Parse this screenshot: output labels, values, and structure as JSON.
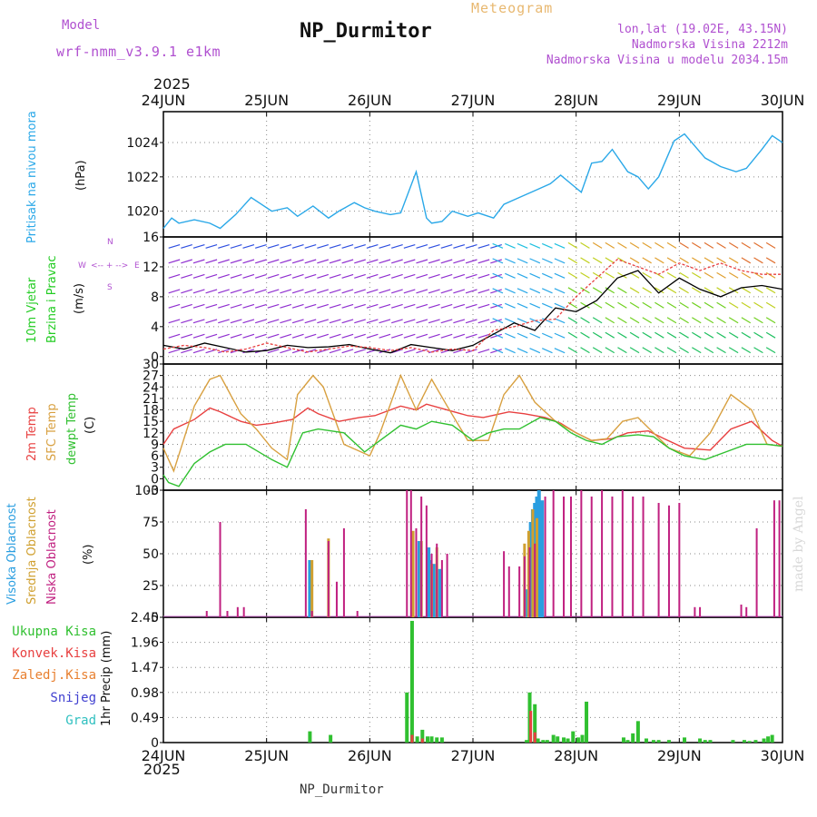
{
  "header": {
    "model_label": "Model",
    "model_value": "wrf-nmm_v3.9.1  e1km",
    "meteogram_label": "Meteogram",
    "station_title": "NP_Durmitor",
    "lonlat": "lon,lat (19.02E, 43.15N)",
    "elevation": "Nadmorska Visina 2212m",
    "model_elevation": "Nadmorska Visina u modelu 2034.15m",
    "year": "2025"
  },
  "x_axis": {
    "ticks": [
      "24JUN",
      "25JUN",
      "26JUN",
      "27JUN",
      "28JUN",
      "29JUN",
      "30JUN"
    ]
  },
  "footer": {
    "station": "NP_Durmitor",
    "watermark": "made by Angel"
  },
  "colors": {
    "pressure": "#2aa8e8",
    "t2m": "#e84040",
    "sfc": "#d8a040",
    "dew": "#30c030",
    "high_cloud": "#2a9ee0",
    "mid_cloud": "#d0a030",
    "low_cloud": "#c02080",
    "total_precip": "#30c030",
    "conv_precip": "#e84040",
    "freezing": "#e88030",
    "snow": "#4040d0",
    "hail": "#30c0c0",
    "wind_speed": "#000000",
    "gust": "#e84040"
  },
  "chart_data": [
    {
      "type": "line",
      "panel": "pressure",
      "ylabel_lines": [
        "Pritisak na nivou mora",
        "(hPa)"
      ],
      "ylabel": "(hPa)",
      "y_ticks": [
        1020,
        1022,
        1024
      ],
      "ylim": [
        1018.5,
        1025.8
      ],
      "xlim": [
        0,
        6
      ],
      "grid": true,
      "series": [
        {
          "name": "Pritisak na nivou mora",
          "x": [
            0,
            0.08,
            0.15,
            0.3,
            0.45,
            0.55,
            0.7,
            0.85,
            0.95,
            1.05,
            1.2,
            1.3,
            1.45,
            1.6,
            1.7,
            1.85,
            1.95,
            2.05,
            2.2,
            2.3,
            2.45,
            2.55,
            2.6,
            2.7,
            2.8,
            2.95,
            3.05,
            3.2,
            3.3,
            3.45,
            3.6,
            3.75,
            3.85,
            3.95,
            4.05,
            4.15,
            4.25,
            4.35,
            4.5,
            4.6,
            4.7,
            4.8,
            4.95,
            5.05,
            5.15,
            5.25,
            5.4,
            5.55,
            5.65,
            5.8,
            5.9,
            6.0
          ],
          "values": [
            1019.0,
            1019.6,
            1019.3,
            1019.5,
            1019.3,
            1019.0,
            1019.8,
            1020.8,
            1020.4,
            1020.0,
            1020.2,
            1019.7,
            1020.3,
            1019.6,
            1020.0,
            1020.5,
            1020.2,
            1020.0,
            1019.8,
            1019.9,
            1022.3,
            1019.6,
            1019.3,
            1019.4,
            1020.0,
            1019.7,
            1019.9,
            1019.6,
            1020.4,
            1020.8,
            1021.2,
            1021.6,
            1022.1,
            1021.6,
            1021.1,
            1022.8,
            1022.9,
            1023.6,
            1022.3,
            1022.0,
            1021.3,
            1022.0,
            1024.1,
            1024.5,
            1023.8,
            1023.1,
            1022.6,
            1022.3,
            1022.5,
            1023.6,
            1024.4,
            1024.0
          ]
        }
      ]
    },
    {
      "type": "line",
      "panel": "wind",
      "ylabel_lines": [
        "10m Vjetar",
        "Brzina i Pravac",
        "(m/s)"
      ],
      "ylabel": "(m/s)",
      "compass": {
        "n": "N",
        "s": "S",
        "w": "W",
        "e": "E"
      },
      "y_ticks": [
        0,
        4,
        8,
        12,
        16
      ],
      "y_tick_labels": [
        "0",
        "4",
        "8",
        "12",
        "16"
      ],
      "ylim": [
        -1,
        16
      ],
      "xlim": [
        0,
        6
      ],
      "grid": true,
      "series": [
        {
          "name": "wind speed",
          "x": [
            0,
            0.2,
            0.4,
            0.6,
            0.8,
            1.0,
            1.2,
            1.4,
            1.6,
            1.8,
            2.0,
            2.2,
            2.4,
            2.6,
            2.8,
            3.0,
            3.2,
            3.4,
            3.6,
            3.8,
            4.0,
            4.2,
            4.4,
            4.6,
            4.8,
            5.0,
            5.2,
            5.4,
            5.6,
            5.8,
            6.0
          ],
          "values": [
            1.5,
            1.0,
            1.8,
            1.2,
            0.6,
            0.8,
            1.5,
            1.2,
            1.3,
            1.6,
            1.0,
            0.5,
            1.6,
            1.2,
            0.8,
            1.5,
            3.0,
            4.5,
            3.5,
            6.5,
            6.0,
            7.5,
            10.5,
            11.5,
            8.5,
            10.5,
            9.0,
            8.0,
            9.2,
            9.5,
            9.0
          ]
        },
        {
          "name": "gust",
          "x": [
            0,
            0.2,
            0.4,
            0.6,
            0.8,
            1.0,
            1.2,
            1.4,
            1.6,
            1.8,
            2.0,
            2.2,
            2.4,
            2.6,
            2.8,
            3.0,
            3.2,
            3.4,
            3.6,
            3.8,
            4.0,
            4.2,
            4.4,
            4.6,
            4.8,
            5.0,
            5.2,
            5.4,
            5.6,
            5.8,
            6.0
          ],
          "values": [
            1.0,
            1.5,
            1.2,
            0.6,
            1.0,
            1.8,
            1.2,
            0.6,
            1.0,
            1.4,
            1.2,
            0.8,
            1.2,
            0.6,
            1.0,
            0.8,
            3.5,
            4.0,
            4.8,
            5.0,
            8.0,
            10.5,
            13.0,
            12.0,
            11.0,
            12.5,
            11.5,
            12.5,
            11.5,
            11.0,
            11.0
          ]
        }
      ]
    },
    {
      "type": "line",
      "panel": "temperature",
      "ylabel_lines": [
        "2m Temp",
        "SFC Temp",
        "dewpt Temp",
        "(C)"
      ],
      "ylabel": "(C)",
      "y_ticks": [
        -3,
        0,
        3,
        6,
        9,
        12,
        15,
        18,
        21,
        24,
        27,
        30
      ],
      "ylim": [
        -3,
        30
      ],
      "xlim": [
        0,
        6
      ],
      "grid": true,
      "series": [
        {
          "name": "2m Temp",
          "x": [
            0,
            0.1,
            0.3,
            0.45,
            0.55,
            0.75,
            0.9,
            1.05,
            1.25,
            1.4,
            1.5,
            1.7,
            1.9,
            2.05,
            2.3,
            2.45,
            2.55,
            2.75,
            2.95,
            3.1,
            3.35,
            3.5,
            3.7,
            3.85,
            4.0,
            4.15,
            4.35,
            4.5,
            4.7,
            4.85,
            5.05,
            5.3,
            5.5,
            5.7,
            5.9,
            6.0
          ],
          "values": [
            9,
            13,
            15.5,
            18.5,
            17.5,
            15,
            14,
            14.5,
            15.5,
            18.5,
            17,
            15,
            16,
            16.5,
            19,
            18,
            19.5,
            18,
            16.5,
            16,
            17.5,
            17,
            16,
            14.5,
            12,
            10,
            10.5,
            12,
            12.5,
            10.5,
            8,
            7.5,
            13,
            15,
            10,
            8.5
          ]
        },
        {
          "name": "SFC Temp",
          "x": [
            0,
            0.1,
            0.3,
            0.45,
            0.55,
            0.75,
            0.9,
            1.05,
            1.2,
            1.3,
            1.45,
            1.55,
            1.75,
            2.0,
            2.1,
            2.3,
            2.45,
            2.6,
            2.75,
            2.95,
            3.15,
            3.3,
            3.45,
            3.6,
            3.8,
            4.0,
            4.15,
            4.3,
            4.45,
            4.6,
            4.75,
            4.9,
            5.1,
            5.3,
            5.5,
            5.7,
            5.85,
            6.0
          ],
          "values": [
            8,
            2,
            19,
            26,
            27,
            17,
            13,
            8,
            5,
            22,
            27,
            24,
            9,
            6,
            12,
            27,
            18,
            26,
            19,
            10,
            10,
            22,
            27,
            20,
            15,
            12,
            10,
            10.5,
            15,
            16,
            12,
            8,
            6,
            12,
            22,
            18,
            9,
            8.5
          ]
        },
        {
          "name": "dewpt Temp",
          "x": [
            0,
            0.05,
            0.15,
            0.3,
            0.45,
            0.6,
            0.8,
            1.05,
            1.2,
            1.35,
            1.5,
            1.75,
            1.95,
            2.1,
            2.3,
            2.45,
            2.6,
            2.8,
            3.0,
            3.15,
            3.3,
            3.45,
            3.65,
            3.8,
            3.95,
            4.1,
            4.25,
            4.4,
            4.6,
            4.75,
            4.9,
            5.05,
            5.25,
            5.45,
            5.65,
            5.85,
            6.0
          ],
          "values": [
            1,
            -1,
            -2,
            4,
            7,
            9,
            9,
            5,
            3,
            12,
            13,
            12,
            7,
            10,
            14,
            13,
            15,
            14,
            10,
            12,
            13,
            13,
            16,
            15,
            12,
            10,
            9,
            11,
            11.5,
            11,
            8,
            6,
            5,
            7,
            9,
            9,
            8.5
          ]
        }
      ]
    },
    {
      "type": "bar",
      "panel": "clouds",
      "ylabel_lines": [
        "Visoka Oblacnost",
        "Srednja Oblacnost",
        "Niska Oblacnost",
        "(%)"
      ],
      "ylabel": "(%)",
      "y_ticks": [
        0,
        25,
        50,
        75,
        100
      ],
      "ylim": [
        0,
        100
      ],
      "xlim": [
        0,
        6
      ],
      "grid": true,
      "series": [
        {
          "name": "Visoka Oblacnost",
          "x": [
            1.42,
            2.48,
            2.57,
            2.59,
            2.62,
            2.68,
            3.52,
            3.56,
            3.58,
            3.6,
            3.62,
            3.64,
            3.67
          ],
          "values": [
            45,
            60,
            55,
            45,
            42,
            38,
            22,
            75,
            85,
            90,
            95,
            100,
            92
          ]
        },
        {
          "name": "Srednja Oblacnost",
          "x": [
            1.44,
            1.6,
            2.42,
            2.5,
            2.6,
            2.65,
            3.5,
            3.54,
            3.58,
            3.62
          ],
          "values": [
            45,
            62,
            68,
            60,
            42,
            55,
            58,
            68,
            85,
            78
          ]
        },
        {
          "name": "Niska Oblacnost",
          "x": [
            0.42,
            0.55,
            0.62,
            0.72,
            0.78,
            1.38,
            1.44,
            1.6,
            1.68,
            1.75,
            1.88,
            2.36,
            2.4,
            2.45,
            2.5,
            2.55,
            2.6,
            2.65,
            2.7,
            2.75,
            3.3,
            3.35,
            3.45,
            3.5,
            3.55,
            3.6,
            3.7,
            3.78,
            3.88,
            3.95,
            4.05,
            4.15,
            4.25,
            4.35,
            4.45,
            4.55,
            4.65,
            4.8,
            4.9,
            5.0,
            5.15,
            5.2,
            5.6,
            5.65,
            5.75,
            5.92,
            5.97
          ],
          "values": [
            5,
            75,
            5,
            8,
            8,
            85,
            5,
            60,
            28,
            70,
            5,
            100,
            100,
            70,
            95,
            88,
            50,
            58,
            45,
            50,
            52,
            40,
            40,
            48,
            55,
            58,
            95,
            100,
            95,
            95,
            100,
            95,
            100,
            95,
            100,
            95,
            95,
            90,
            88,
            90,
            8,
            8,
            10,
            8,
            70,
            92,
            92
          ]
        }
      ]
    },
    {
      "type": "bar",
      "panel": "precipitation",
      "ylabel_lines": [
        "Ukupna Kisa",
        "Konvek.Kisa",
        "Zaledj.Kisa",
        "Snijeg",
        "Grad",
        "1hr Precip (mm)"
      ],
      "legend_lines": [
        "Ukupna Kisa",
        "Konvek.Kisa",
        "Zaledj.Kisa",
        "Snijeg",
        "Grad"
      ],
      "ylabel": "1hr Precip (mm)",
      "y_ticks": [
        0,
        0.49,
        0.98,
        1.47,
        1.96,
        2.45
      ],
      "y_tick_labels": [
        "0",
        "0.49",
        "0.98",
        "1.47",
        "1.96",
        "2.45"
      ],
      "ylim": [
        0,
        2.45
      ],
      "xlim": [
        0,
        6
      ],
      "grid": true,
      "series": [
        {
          "name": "Ukupna Kisa",
          "x": [
            1.42,
            1.62,
            2.36,
            2.41,
            2.46,
            2.51,
            2.56,
            2.6,
            2.65,
            2.7,
            3.52,
            3.55,
            3.6,
            3.63,
            3.68,
            3.72,
            3.78,
            3.82,
            3.88,
            3.92,
            3.97,
            4.02,
            4.06,
            4.1,
            4.46,
            4.5,
            4.55,
            4.6,
            4.68,
            4.75,
            4.8,
            4.9,
            5.05,
            5.2,
            5.25,
            5.3,
            5.52,
            5.63,
            5.68,
            5.74,
            5.82,
            5.86,
            5.9
          ],
          "values": [
            0.22,
            0.15,
            0.98,
            2.38,
            0.12,
            0.25,
            0.12,
            0.12,
            0.1,
            0.1,
            0.05,
            0.98,
            0.75,
            0.08,
            0.05,
            0.05,
            0.15,
            0.12,
            0.1,
            0.08,
            0.22,
            0.1,
            0.15,
            0.8,
            0.1,
            0.05,
            0.18,
            0.42,
            0.08,
            0.05,
            0.05,
            0.05,
            0.1,
            0.08,
            0.05,
            0.05,
            0.05,
            0.05,
            0.03,
            0.05,
            0.08,
            0.12,
            0.15
          ]
        },
        {
          "name": "Konvek.Kisa",
          "x": [
            2.41,
            2.51,
            3.56,
            3.6
          ],
          "values": [
            0.15,
            0.08,
            0.62,
            0.2
          ]
        }
      ]
    }
  ]
}
